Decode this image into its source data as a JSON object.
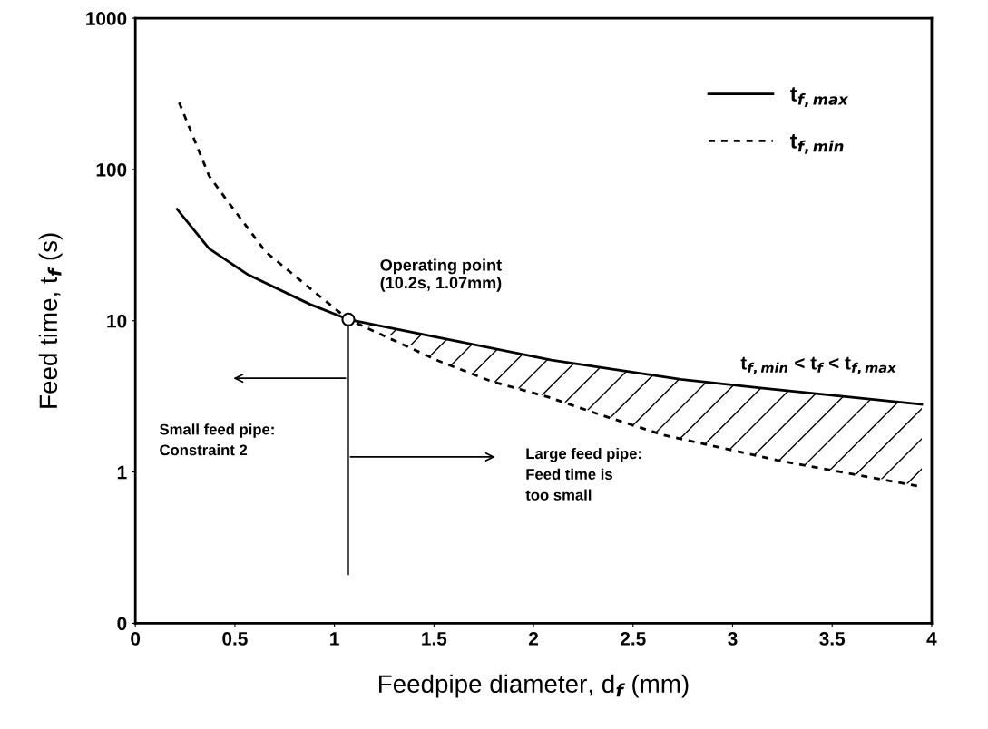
{
  "chart_data": {
    "type": "line",
    "xlabel": "Feedpipe diameter, d$_{f}$ (mm)",
    "ylabel": "Feed time, t$_{f}$ (s)",
    "log": "y",
    "xlim": [
      0,
      4
    ],
    "ylim": [
      0.1,
      1000
    ],
    "xticks": [
      0,
      0.5,
      1,
      1.5,
      2,
      2.5,
      3,
      3.5,
      4
    ],
    "yticks": [
      {
        "value": 0.1,
        "label": "0"
      },
      1,
      10,
      100,
      1000
    ],
    "grid": false,
    "legend": "top right",
    "series": [
      {
        "name": "t$_{f,max}$",
        "color": "#000000",
        "line_style": "solid",
        "x": [
          0.21,
          0.37,
          0.565,
          0.88,
          1.07,
          1.6,
          2.09,
          2.74,
          3.14,
          3.95
        ],
        "values": [
          54.6,
          30,
          20.2,
          12.8,
          10.2,
          7.4,
          5.5,
          4.1,
          3.6,
          2.8
        ]
      },
      {
        "name": "t$_{f,min}$",
        "color": "#000000",
        "line_style": "dotted",
        "x": [
          0.22,
          0.37,
          0.46,
          0.655,
          0.91,
          1.07,
          1.52,
          1.79,
          2.07,
          2.34,
          2.65,
          3.22,
          3.62,
          3.95
        ],
        "values": [
          277,
          91,
          62.5,
          28.5,
          15.1,
          10.2,
          5.45,
          3.97,
          3.14,
          2.38,
          1.76,
          1.2,
          0.96,
          0.8
        ]
      },
      {
        "type": "scatter",
        "color": "#000000",
        "marker": "circle",
        "x": [
          1.07
        ],
        "values": [
          10.2
        ]
      }
    ],
    "annotations": [
      {
        "text": "Operating point\n(10.2s, 1.07mm)",
        "x": 1.07,
        "y": 10.2
      },
      "Small feed pipe:\nConstraint 2",
      "Large feed pipe:\nFeed time is\ntoo small",
      "t$_{f,min}$ < t$_{f}$ < t$_{f,max}$"
    ]
  }
}
